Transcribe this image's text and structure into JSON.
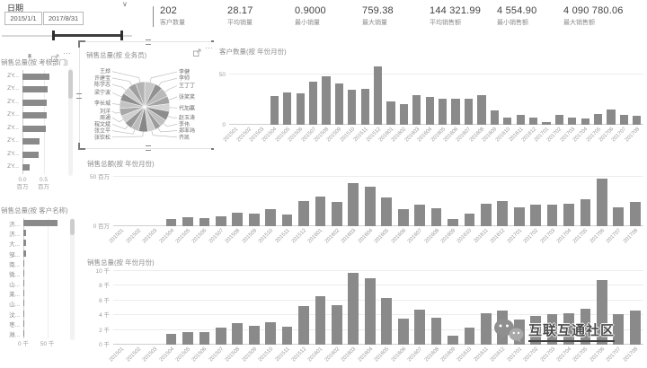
{
  "date_slicer": {
    "title": "日期",
    "start_date": "2015/1/1",
    "end_date": "2017/8/31"
  },
  "kpis": [
    {
      "value": "202",
      "label": "客户数量"
    },
    {
      "value": "28.17",
      "label": "平均销量"
    },
    {
      "value": "0.9000",
      "label": "最小销量"
    },
    {
      "value": "759.38",
      "label": "最大销量"
    },
    {
      "value": "144 321.99",
      "label": "平均销售额"
    },
    {
      "value": "4 554.90",
      "label": "最小销售额"
    },
    {
      "value": "4 090 780.06",
      "label": "最大销售额"
    }
  ],
  "watermark": {
    "text": "互联互通社区",
    "icon": "wechat-icon"
  },
  "colors": {
    "bar": "#8a8a8a",
    "gridline": "#ececec",
    "baseline": "#cfcfcf",
    "axis_text": "#9e9e9e",
    "panel_title": "#8c8c8c",
    "kpi_value": "#3f3f3f",
    "slider": "#3d3d3d",
    "pie_grays": [
      "#c7c7c7",
      "#929292",
      "#b9b9b9",
      "#a3a3a3",
      "#d4d4d4",
      "#8d8d8d",
      "#c0c0c0",
      "#9c9c9c",
      "#cecece",
      "#888888",
      "#bdbdbd",
      "#969696",
      "#d0d0d0",
      "#a8a8a8",
      "#c3c3c3",
      "#8f8f8f",
      "#cacaca",
      "#9f9f9f",
      "#b3b3b3"
    ]
  },
  "chart_data": [
    {
      "type": "bar",
      "orientation": "horizontal",
      "title": "销售总量(按 考核部门)",
      "categories": [
        "ZY...",
        "ZY...",
        "ZY...",
        "ZY...",
        "ZY...",
        "ZY...",
        "ZY...",
        "ZY..."
      ],
      "values": [
        0.64,
        0.59,
        0.57,
        0.57,
        0.55,
        0.41,
        0.39,
        0.18
      ],
      "xlabel": "百万",
      "xlim": [
        0,
        1.0
      ],
      "xticks": [
        {
          "v": 0,
          "label": "0.0\n百万"
        },
        {
          "v": 0.5,
          "label": "0.5\n百万"
        }
      ]
    },
    {
      "type": "pie",
      "title": "销售总量(按 业务员)",
      "slices": [
        {
          "label": "李健",
          "value": 7
        },
        {
          "label": "李帅",
          "value": 5
        },
        {
          "label": "王丁丁",
          "value": 6
        },
        {
          "label": "张笑笑",
          "value": 5
        },
        {
          "label": "代加赢",
          "value": 5
        },
        {
          "label": "赵玉涛",
          "value": 6
        },
        {
          "label": "李伟",
          "value": 5
        },
        {
          "label": "郑率玮",
          "value": 4
        },
        {
          "label": "齐凯",
          "value": 5
        },
        {
          "label": "张钦松",
          "value": 6
        },
        {
          "label": "张立平",
          "value": 5
        },
        {
          "label": "程文斌",
          "value": 5
        },
        {
          "label": "周通",
          "value": 5
        },
        {
          "label": "刘洋",
          "value": 5
        },
        {
          "label": "李长城",
          "value": 5
        },
        {
          "label": "梁宁波",
          "value": 5
        },
        {
          "label": "陈学志",
          "value": 5
        },
        {
          "label": "许建宝",
          "value": 5
        },
        {
          "label": "王烨",
          "value": 6
        }
      ]
    },
    {
      "type": "bar",
      "title": "客户数量(按 年份月份)",
      "categories": [
        "201501",
        "201502",
        "201503",
        "201504",
        "201505",
        "201506",
        "201507",
        "201508",
        "201509",
        "201510",
        "201511",
        "201512",
        "201601",
        "201602",
        "201603",
        "201604",
        "201605",
        "201606",
        "201607",
        "201608",
        "201609",
        "201610",
        "201611",
        "201612",
        "201701",
        "201702",
        "201703",
        "201704",
        "201705",
        "201706",
        "201707",
        "201708"
      ],
      "values": [
        0,
        0,
        0,
        29,
        32,
        31,
        43,
        48,
        41,
        35,
        36,
        58,
        23,
        21,
        30,
        28,
        26,
        26,
        26,
        30,
        14,
        7,
        10,
        7,
        3,
        10,
        7,
        6,
        11,
        15,
        10,
        9
      ],
      "ylim": [
        0,
        60
      ],
      "yticks": [
        {
          "v": 50,
          "label": "50"
        },
        {
          "v": 0,
          "label": "0"
        }
      ]
    },
    {
      "type": "bar",
      "title": "销售总额(按 年份月份)",
      "categories": [
        "201501",
        "201502",
        "201503",
        "201504",
        "201505",
        "201506",
        "201507",
        "201508",
        "201509",
        "201510",
        "201511",
        "201512",
        "201601",
        "201602",
        "201603",
        "201604",
        "201605",
        "201606",
        "201607",
        "201608",
        "201609",
        "201610",
        "201611",
        "201612",
        "201701",
        "201702",
        "201703",
        "201704",
        "201705",
        "201706",
        "201707",
        "201708"
      ],
      "values": [
        0,
        0,
        0,
        7,
        9,
        8,
        10,
        14,
        13,
        17,
        12,
        26,
        30,
        25,
        44,
        40,
        29,
        17,
        22,
        18,
        7,
        13,
        23,
        26,
        19,
        22,
        22,
        23,
        27,
        48,
        19,
        25
      ],
      "ylabel": "百万",
      "ylim": [
        0,
        52
      ],
      "yticks": [
        {
          "v": 50,
          "label": "50 百万"
        },
        {
          "v": 0,
          "label": "0 百万"
        }
      ]
    },
    {
      "type": "bar",
      "title": "销售总量(按 年份月份)",
      "categories": [
        "201501",
        "201502",
        "201503",
        "201504",
        "201505",
        "201506",
        "201507",
        "201508",
        "201509",
        "201510",
        "201511",
        "201512",
        "201601",
        "201602",
        "201603",
        "201604",
        "201605",
        "201606",
        "201607",
        "201608",
        "201609",
        "201610",
        "201611",
        "201612",
        "201701",
        "201702",
        "201703",
        "201704",
        "201705",
        "201706",
        "201707",
        "201708"
      ],
      "values": [
        0,
        0,
        0,
        1.5,
        1.7,
        1.7,
        2.3,
        2.9,
        2.6,
        3.0,
        2.4,
        5.2,
        6.6,
        5.4,
        9.8,
        9.0,
        6.4,
        3.5,
        4.8,
        3.7,
        1.2,
        2.3,
        4.3,
        4.6,
        3.4,
        3.9,
        4.1,
        4.3,
        4.9,
        8.8,
        4.1,
        4.7
      ],
      "ylabel": "千",
      "ylim": [
        0,
        10.5
      ],
      "yticks": [
        {
          "v": 10,
          "label": "10 千"
        },
        {
          "v": 8,
          "label": "8 千"
        },
        {
          "v": 6,
          "label": "6 千"
        },
        {
          "v": 4,
          "label": "4 千"
        },
        {
          "v": 2,
          "label": "2 千"
        },
        {
          "v": 0,
          "label": "0 千"
        }
      ]
    },
    {
      "type": "bar",
      "orientation": "horizontal",
      "title": "销售总量(按 客户名称)",
      "categories": [
        "济...",
        "济...",
        "大...",
        "邹...",
        "南...",
        "微...",
        "山...",
        "莱...",
        "山...",
        "汶...",
        "枣...",
        "潍..."
      ],
      "values": [
        72,
        5,
        5,
        5,
        1.5,
        1.5,
        1,
        1,
        1,
        0.8,
        0.7,
        0.6
      ],
      "xlabel": "千",
      "xlim": [
        0,
        92
      ],
      "xticks": [
        {
          "v": 0,
          "label": "0 千"
        },
        {
          "v": 50,
          "label": "50 千"
        }
      ]
    }
  ]
}
